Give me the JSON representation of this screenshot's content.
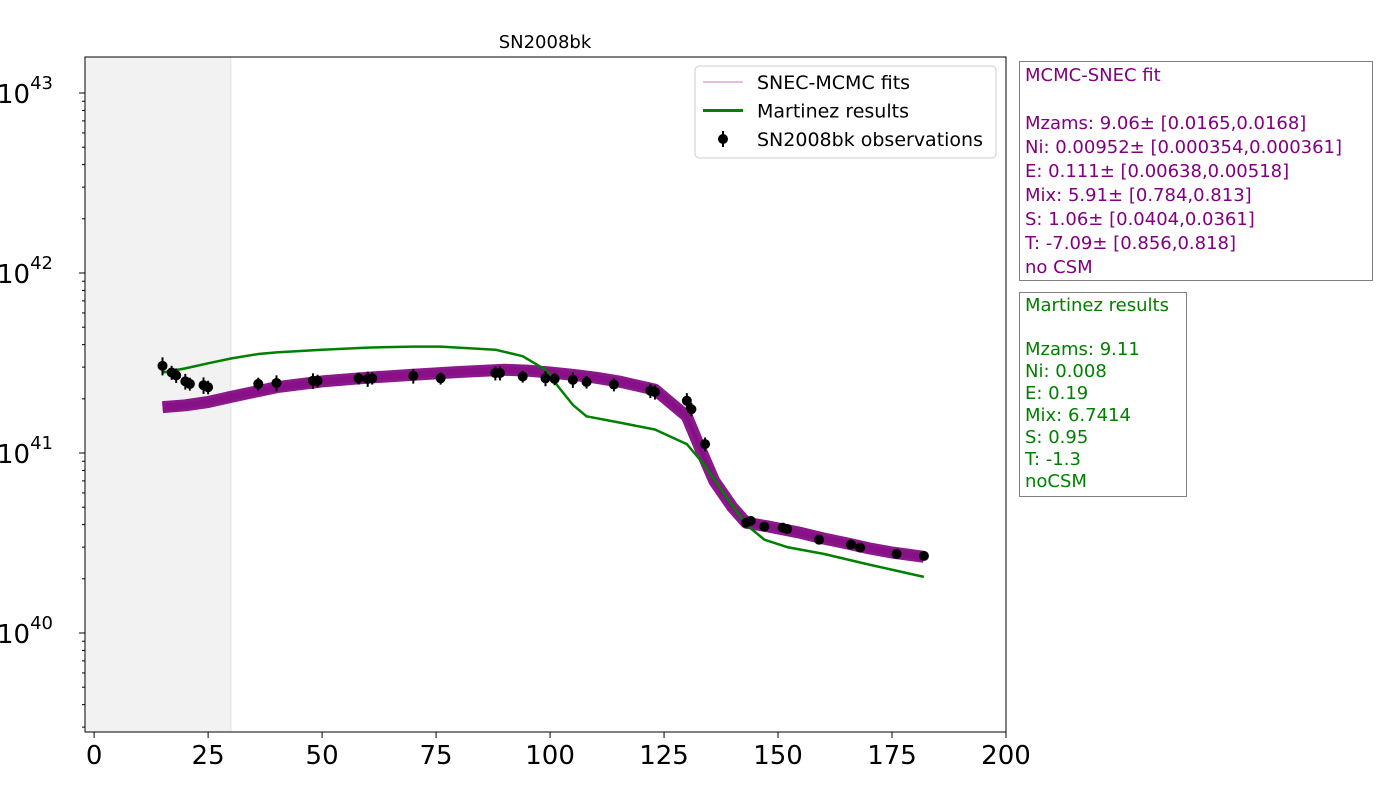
{
  "chart_data": {
    "type": "line",
    "title": "SN2008bk",
    "xlabel": "",
    "ylabel": "",
    "xlim": [
      -2,
      200
    ],
    "ylim_log10": [
      39.45,
      43.2
    ],
    "yscale": "log",
    "x_ticks": [
      0,
      25,
      50,
      75,
      100,
      125,
      150,
      175,
      200
    ],
    "y_ticks": [
      {
        "value": 1e+40,
        "base": "10",
        "exp": "40"
      },
      {
        "value": 1e+41,
        "base": "10",
        "exp": "41"
      },
      {
        "value": 1e+42,
        "base": "10",
        "exp": "42"
      },
      {
        "value": 1e+43,
        "base": "10",
        "exp": "43"
      }
    ],
    "shaded_region": {
      "x_start": -2,
      "x_end": 30,
      "color": "#f2f2f2"
    },
    "legend": {
      "placement": "top-right",
      "entries": [
        {
          "label": "SNEC-MCMC fits",
          "color": "#e0bfe0",
          "kind": "line"
        },
        {
          "label": "Martinez results",
          "color": "#008000",
          "kind": "line"
        },
        {
          "label": "SN2008bk observations",
          "color": "#000000",
          "kind": "errorbar"
        }
      ]
    },
    "series": [
      {
        "name": "SNEC-MCMC fits",
        "color": "#800080",
        "kind": "band",
        "x": [
          15,
          20,
          25,
          30,
          40,
          50,
          60,
          70,
          80,
          90,
          95,
          100,
          105,
          110,
          115,
          123,
          130,
          133,
          136,
          140,
          143,
          148,
          155,
          160,
          165,
          170,
          175,
          182
        ],
        "y": [
          1.8e+41,
          1.84e+41,
          1.92e+41,
          2.05e+41,
          2.32e+41,
          2.5e+41,
          2.62e+41,
          2.72e+41,
          2.82e+41,
          2.9e+41,
          2.87e+41,
          2.8e+41,
          2.72e+41,
          2.62e+41,
          2.5e+41,
          2.25e+41,
          1.6e+41,
          1.05e+41,
          7e+40,
          5e+40,
          4.1e+40,
          3.9e+40,
          3.6e+40,
          3.35e+40,
          3.15e+40,
          2.95e+40,
          2.8e+40,
          2.65e+40
        ]
      },
      {
        "name": "Martinez results",
        "color": "#008000",
        "kind": "line",
        "x": [
          15,
          20,
          25,
          30,
          36,
          40,
          50,
          60,
          70,
          76,
          88,
          94,
          99,
          102,
          105,
          108,
          115,
          123,
          130,
          134,
          138,
          143,
          147,
          152,
          160,
          170,
          182
        ],
        "y": [
          2.8e+41,
          2.95e+41,
          3.15e+41,
          3.35e+41,
          3.55e+41,
          3.62e+41,
          3.75e+41,
          3.85e+41,
          3.9e+41,
          3.9e+41,
          3.75e+41,
          3.45e+41,
          2.9e+41,
          2.3e+41,
          1.85e+41,
          1.6e+41,
          1.48e+41,
          1.35e+41,
          1.12e+41,
          8.5e+40,
          6e+40,
          4e+40,
          3.3e+40,
          3e+40,
          2.75e+40,
          2.4e+40,
          2.05e+40
        ]
      }
    ],
    "observations": {
      "name": "SN2008bk observations",
      "color": "#000000",
      "points": [
        {
          "x": 15,
          "y": 3.05e+41,
          "err": 3.5e+40
        },
        {
          "x": 17,
          "y": 2.8e+41,
          "err": 2.5e+40
        },
        {
          "x": 18,
          "y": 2.7e+41,
          "err": 2.5e+40
        },
        {
          "x": 20,
          "y": 2.5e+41,
          "err": 2.5e+40
        },
        {
          "x": 21,
          "y": 2.42e+41,
          "err": 2e+40
        },
        {
          "x": 24,
          "y": 2.38e+41,
          "err": 2.5e+40
        },
        {
          "x": 25,
          "y": 2.32e+41,
          "err": 2e+40
        },
        {
          "x": 36,
          "y": 2.42e+41,
          "err": 2e+40
        },
        {
          "x": 40,
          "y": 2.45e+41,
          "err": 2.5e+40
        },
        {
          "x": 48,
          "y": 2.52e+41,
          "err": 2.5e+40
        },
        {
          "x": 49,
          "y": 2.52e+41,
          "err": 2e+40
        },
        {
          "x": 58,
          "y": 2.6e+41,
          "err": 2e+40
        },
        {
          "x": 60,
          "y": 2.58e+41,
          "err": 2.5e+40
        },
        {
          "x": 61,
          "y": 2.6e+41,
          "err": 2e+40
        },
        {
          "x": 70,
          "y": 2.68e+41,
          "err": 2.5e+40
        },
        {
          "x": 76,
          "y": 2.6e+41,
          "err": 2e+40
        },
        {
          "x": 88,
          "y": 2.78e+41,
          "err": 2.5e+40
        },
        {
          "x": 89,
          "y": 2.78e+41,
          "err": 2.5e+40
        },
        {
          "x": 94,
          "y": 2.66e+41,
          "err": 2e+40
        },
        {
          "x": 99,
          "y": 2.6e+41,
          "err": 2.5e+40
        },
        {
          "x": 101,
          "y": 2.58e+41,
          "err": 2e+40
        },
        {
          "x": 105,
          "y": 2.55e+41,
          "err": 2.5e+40
        },
        {
          "x": 108,
          "y": 2.48e+41,
          "err": 2e+40
        },
        {
          "x": 114,
          "y": 2.4e+41,
          "err": 2e+40
        },
        {
          "x": 122,
          "y": 2.22e+41,
          "err": 2e+40
        },
        {
          "x": 123,
          "y": 2.18e+41,
          "err": 2e+40
        },
        {
          "x": 130,
          "y": 1.95e+41,
          "err": 2e+40
        },
        {
          "x": 131,
          "y": 1.75e+41,
          "err": 1.5e+40
        },
        {
          "x": 134,
          "y": 1.12e+41,
          "err": 1e+40
        },
        {
          "x": 143,
          "y": 4.1e+40,
          "err": 2e+39
        },
        {
          "x": 144,
          "y": 4.2e+40,
          "err": 2e+39
        },
        {
          "x": 147,
          "y": 3.9e+40,
          "err": 1.5e+39
        },
        {
          "x": 151,
          "y": 3.85e+40,
          "err": 1.5e+39
        },
        {
          "x": 152,
          "y": 3.78e+40,
          "err": 1.5e+39
        },
        {
          "x": 159,
          "y": 3.3e+40,
          "err": 1e+39
        },
        {
          "x": 166,
          "y": 3.1e+40,
          "err": 1e+39
        },
        {
          "x": 168,
          "y": 2.98e+40,
          "err": 1e+39
        },
        {
          "x": 176,
          "y": 2.75e+40,
          "err": 1e+39
        },
        {
          "x": 182,
          "y": 2.68e+40,
          "err": 1e+39
        }
      ]
    }
  },
  "mcmc_box": {
    "color": "#800080",
    "title": "MCMC-SNEC fit",
    "lines": [
      "Mzams: 9.06± [0.0165,0.0168]",
      "Ni: 0.00952± [0.000354,0.000361]",
      "E: 0.111± [0.00638,0.00518]",
      "Mix: 5.91± [0.784,0.813]",
      "S: 1.06± [0.0404,0.0361]",
      "T: -7.09± [0.856,0.818]",
      "no CSM"
    ]
  },
  "martinez_box": {
    "color": "#008000",
    "title": "Martinez results",
    "lines": [
      "Mzams: 9.11",
      "Ni: 0.008",
      "E: 0.19",
      "Mix: 6.7414",
      "S: 0.95",
      "T: -1.3",
      "noCSM"
    ]
  }
}
